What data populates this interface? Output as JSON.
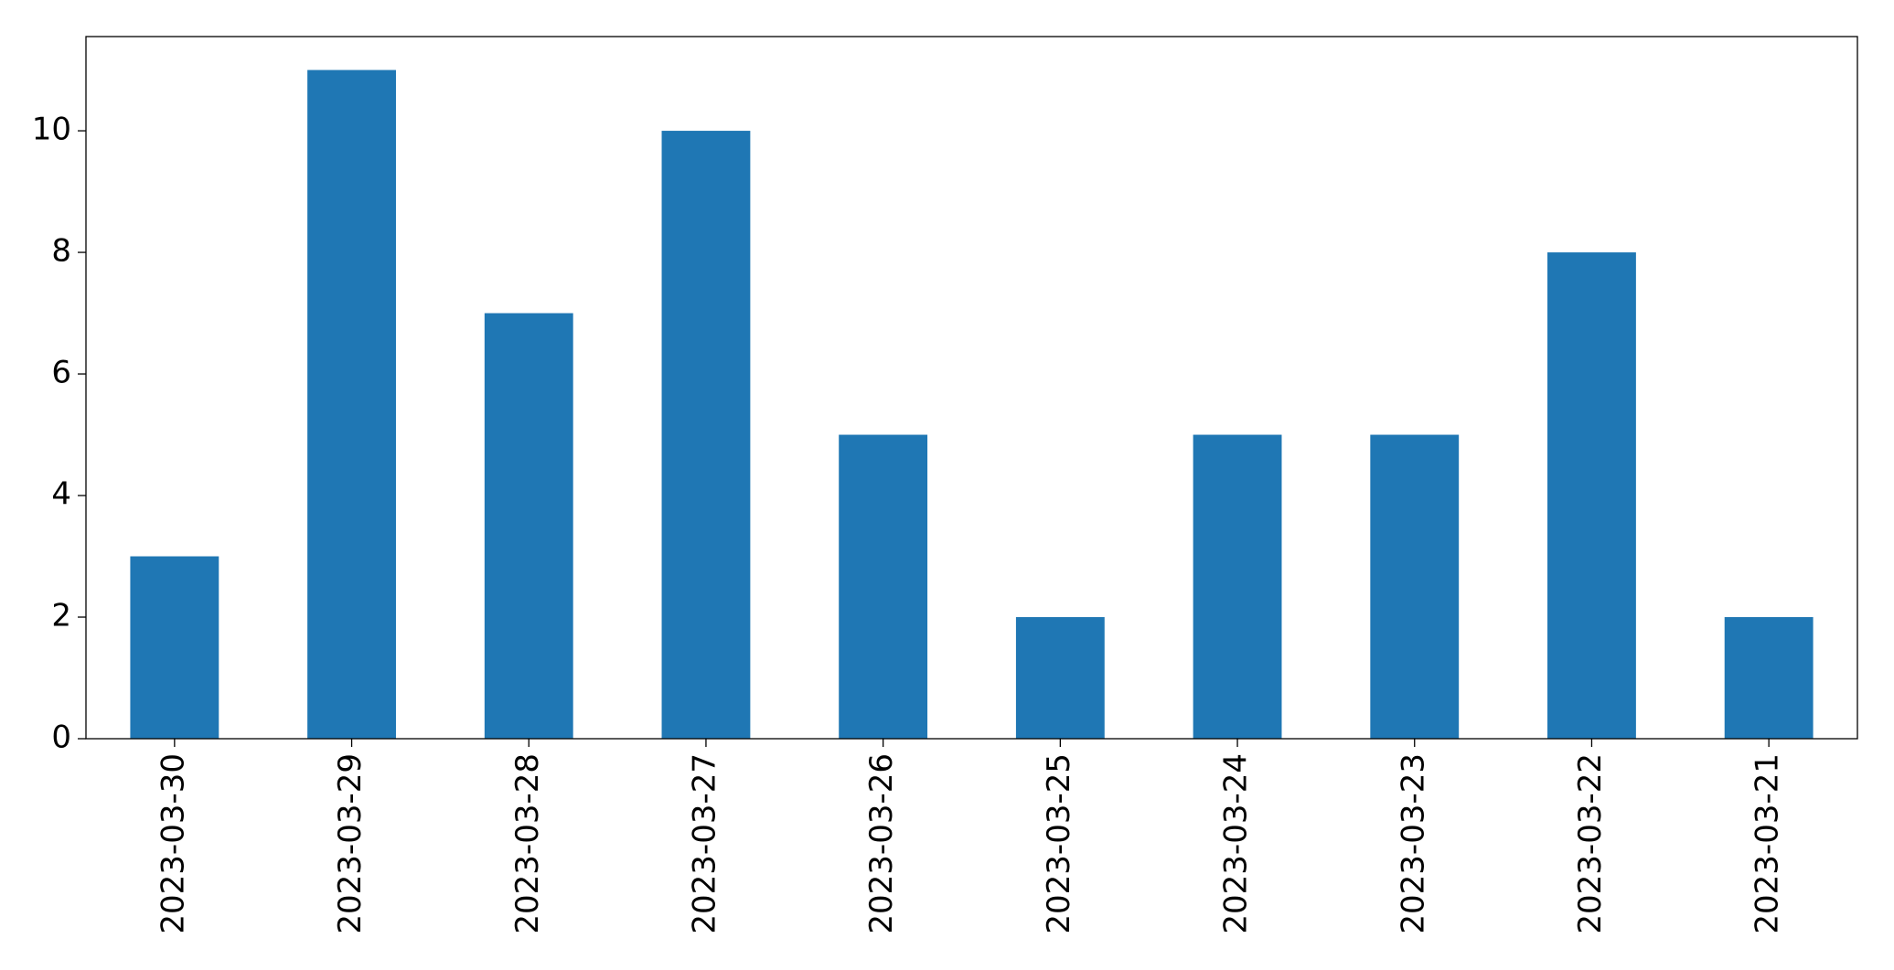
{
  "chart_data": {
    "type": "bar",
    "categories": [
      "2023-03-30",
      "2023-03-29",
      "2023-03-28",
      "2023-03-27",
      "2023-03-26",
      "2023-03-25",
      "2023-03-24",
      "2023-03-23",
      "2023-03-22",
      "2023-03-21"
    ],
    "values": [
      3,
      11,
      7,
      10,
      5,
      2,
      5,
      5,
      8,
      2
    ],
    "color": "#1f77b4",
    "ylim": [
      0,
      11.55
    ],
    "yticks": [
      0,
      2,
      4,
      6,
      8,
      10
    ],
    "grid": false
  }
}
